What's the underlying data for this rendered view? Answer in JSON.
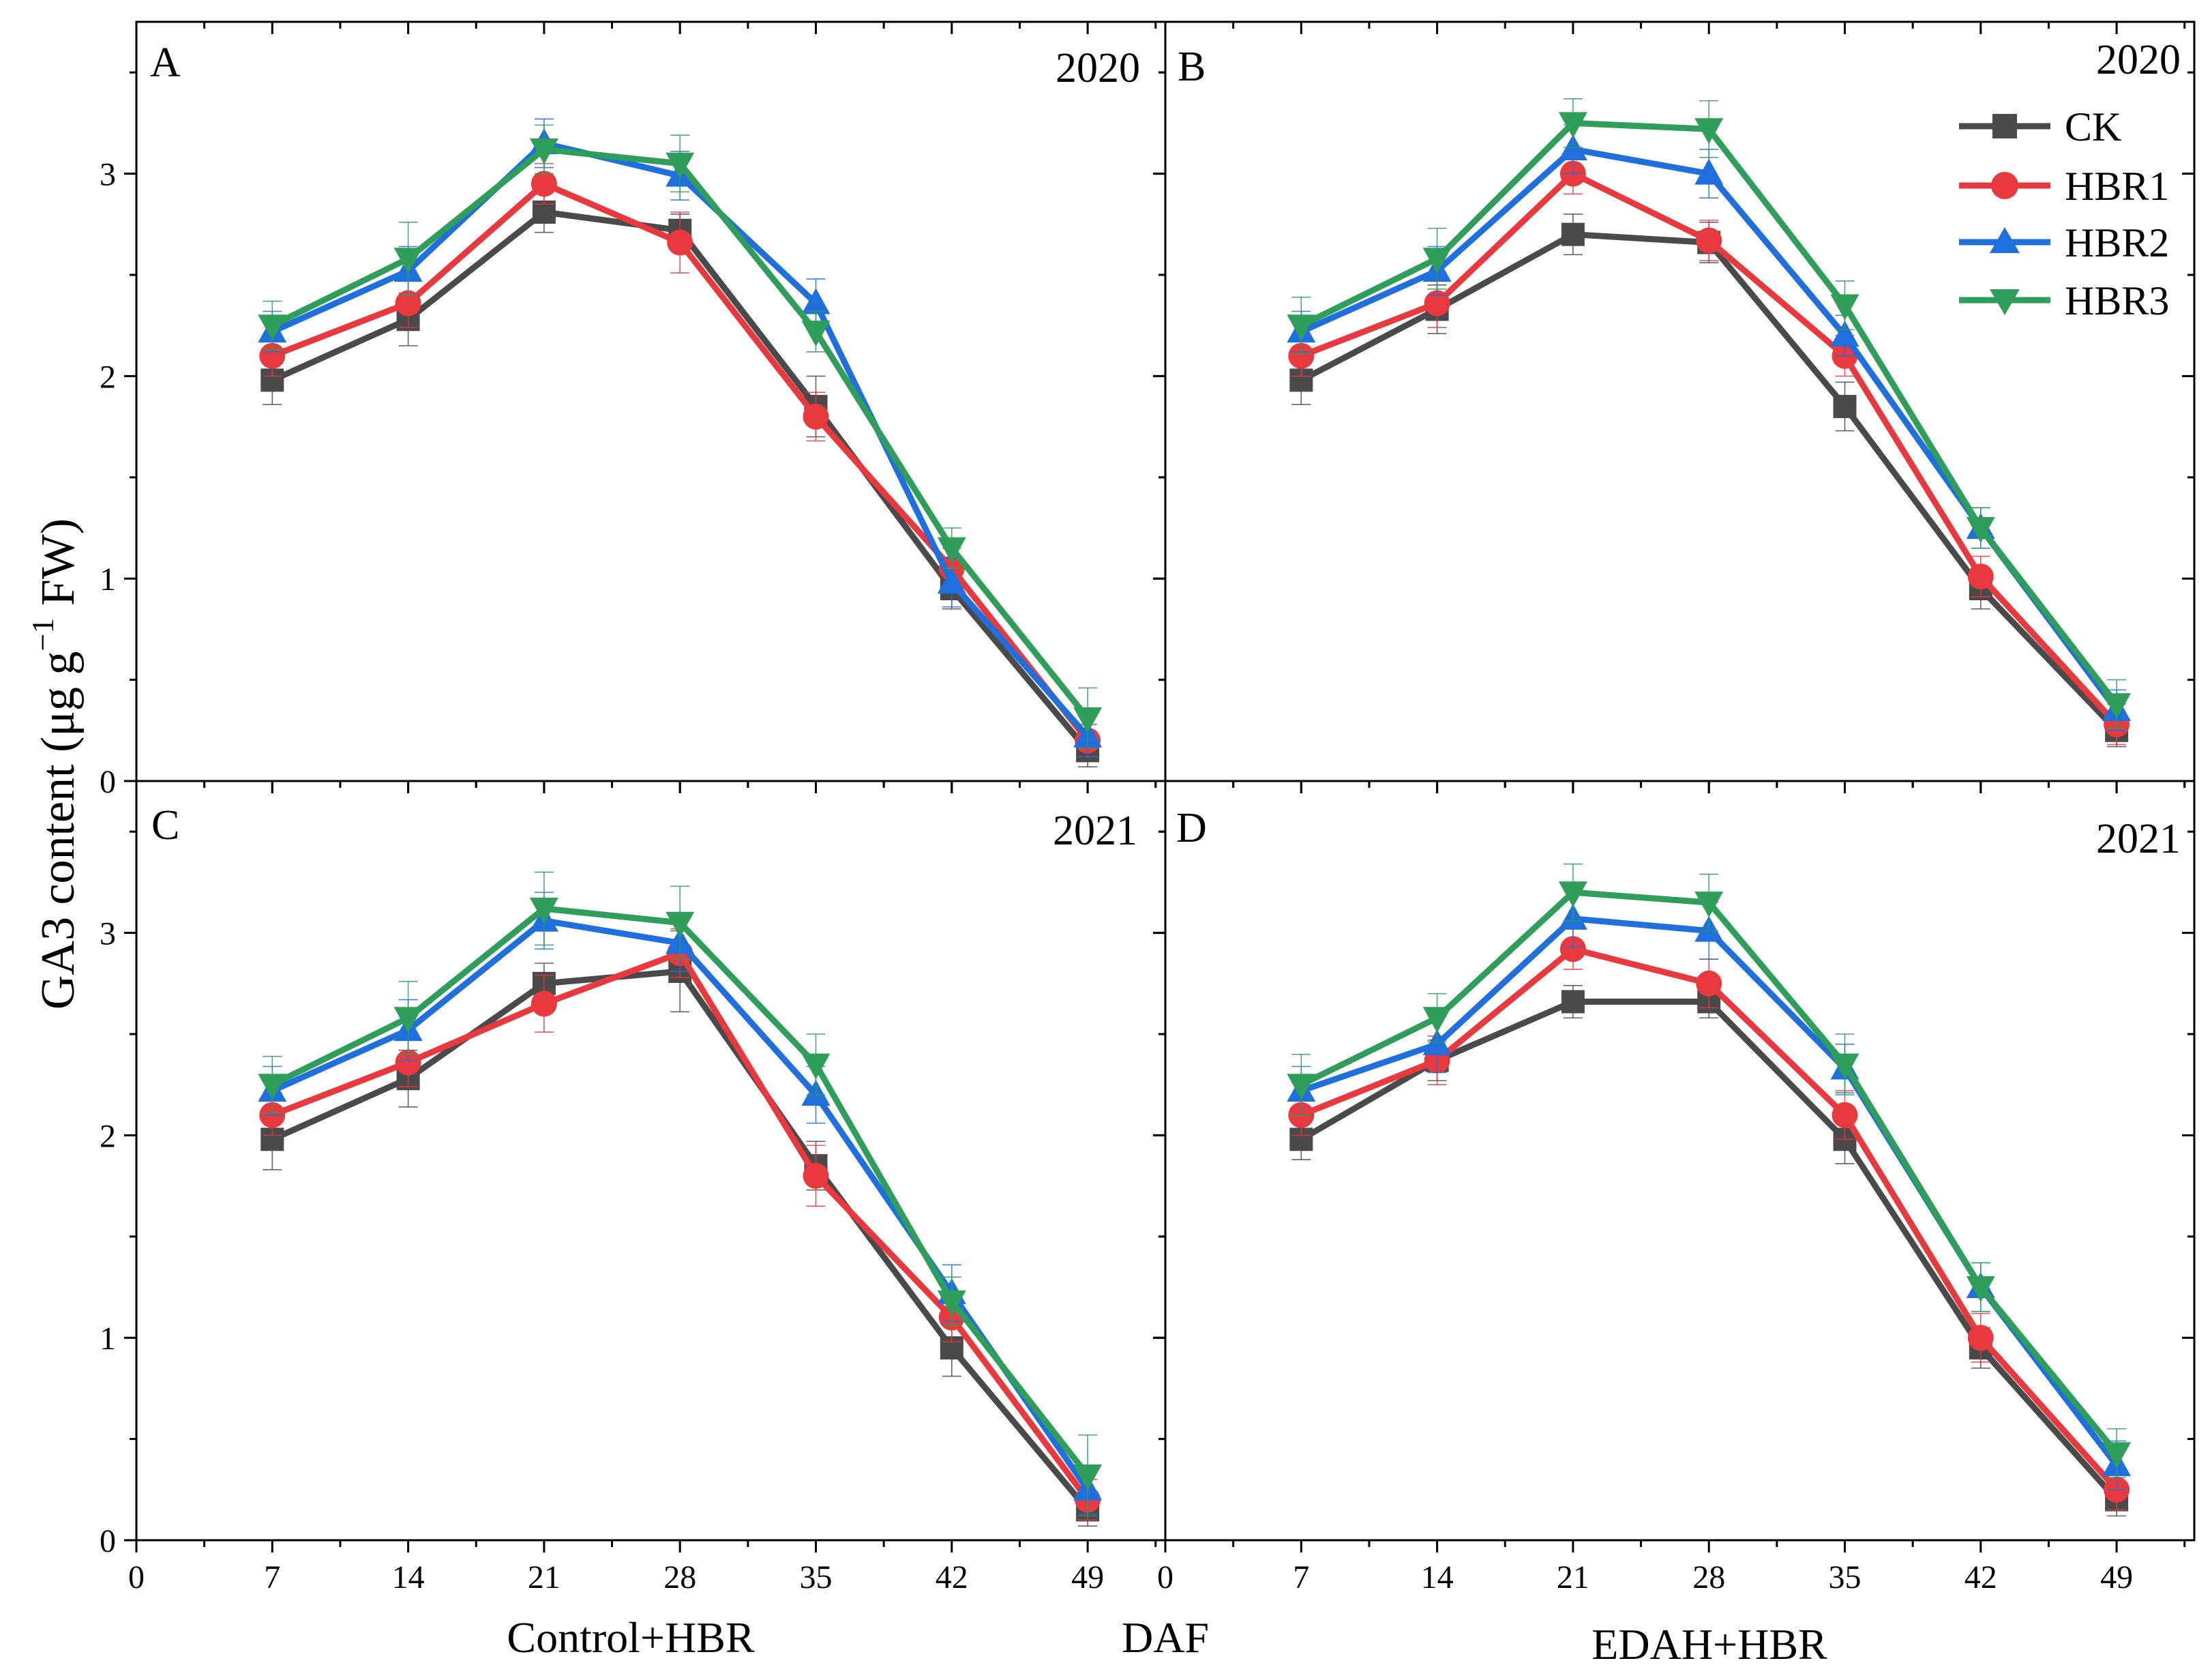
{
  "y_axis_label": "GA3 content (μg g",
  "y_axis_label_sup": "−1",
  "y_axis_label_tail": " FW)",
  "x_axis_labels": {
    "left": "Control+HBR",
    "middle": "DAF",
    "right": "EDAH+HBR"
  },
  "legend": [
    "CK",
    "HBR1",
    "HBR2",
    "HBR3"
  ],
  "series_styles": [
    {
      "name": "CK",
      "color": "#4a4a4a",
      "marker": "square"
    },
    {
      "name": "HBR1",
      "color": "#e8393f",
      "marker": "circle"
    },
    {
      "name": "HBR2",
      "color": "#1f6fdc",
      "marker": "triangle-up"
    },
    {
      "name": "HBR3",
      "color": "#2f9e5b",
      "marker": "triangle-down"
    }
  ],
  "chart_data": [
    {
      "panel": "A",
      "year": "2020",
      "type": "line",
      "x": [
        7,
        14,
        21,
        28,
        35,
        42,
        49
      ],
      "xlim": [
        0,
        53
      ],
      "ylim": [
        0,
        3.75
      ],
      "x_ticks": [
        0,
        7,
        14,
        21,
        28,
        35,
        42,
        49
      ],
      "y_ticks": [
        0,
        1,
        2,
        3
      ],
      "series": [
        {
          "name": "CK",
          "values": [
            1.98,
            2.28,
            2.81,
            2.72,
            1.85,
            0.95,
            0.15
          ],
          "errors": [
            0.12,
            0.13,
            0.1,
            0.08,
            0.15,
            0.1,
            0.08
          ]
        },
        {
          "name": "HBR1",
          "values": [
            2.1,
            2.36,
            2.95,
            2.66,
            1.8,
            1.05,
            0.2
          ],
          "errors": [
            0.1,
            0.12,
            0.1,
            0.15,
            0.12,
            0.1,
            0.08
          ]
        },
        {
          "name": "HBR2",
          "values": [
            2.22,
            2.52,
            3.15,
            2.99,
            2.36,
            0.98,
            0.22
          ],
          "errors": [
            0.1,
            0.12,
            0.12,
            0.12,
            0.12,
            0.12,
            0.1
          ]
        },
        {
          "name": "HBR3",
          "values": [
            2.25,
            2.58,
            3.12,
            3.05,
            2.22,
            1.15,
            0.31
          ],
          "errors": [
            0.12,
            0.18,
            0.12,
            0.14,
            0.1,
            0.1,
            0.15
          ]
        }
      ]
    },
    {
      "panel": "B",
      "year": "2020",
      "type": "line",
      "x": [
        7,
        14,
        21,
        28,
        35,
        42,
        49
      ],
      "xlim": [
        0,
        53
      ],
      "ylim": [
        0,
        3.75
      ],
      "x_ticks": [
        0,
        7,
        14,
        21,
        28,
        35,
        42,
        49
      ],
      "y_ticks": [
        0,
        1,
        2,
        3
      ],
      "series": [
        {
          "name": "CK",
          "values": [
            1.98,
            2.33,
            2.7,
            2.66,
            1.85,
            0.95,
            0.25
          ],
          "errors": [
            0.12,
            0.12,
            0.1,
            0.1,
            0.12,
            0.1,
            0.08
          ]
        },
        {
          "name": "HBR1",
          "values": [
            2.1,
            2.36,
            3.0,
            2.67,
            2.1,
            1.01,
            0.28
          ],
          "errors": [
            0.1,
            0.12,
            0.1,
            0.1,
            0.1,
            0.1,
            0.1
          ]
        },
        {
          "name": "HBR2",
          "values": [
            2.22,
            2.52,
            3.12,
            3.0,
            2.2,
            1.25,
            0.35
          ],
          "errors": [
            0.1,
            0.12,
            0.12,
            0.12,
            0.1,
            0.1,
            0.1
          ]
        },
        {
          "name": "HBR3",
          "values": [
            2.25,
            2.58,
            3.25,
            3.22,
            2.35,
            1.25,
            0.38
          ],
          "errors": [
            0.14,
            0.15,
            0.12,
            0.14,
            0.12,
            0.1,
            0.12
          ]
        }
      ]
    },
    {
      "panel": "C",
      "year": "2021",
      "type": "line",
      "x": [
        7,
        14,
        21,
        28,
        35,
        42,
        49
      ],
      "xlim": [
        0,
        53
      ],
      "ylim": [
        0,
        3.75
      ],
      "x_ticks": [
        0,
        7,
        14,
        21,
        28,
        35,
        42,
        49
      ],
      "y_ticks": [
        0,
        1,
        2,
        3
      ],
      "series": [
        {
          "name": "CK",
          "values": [
            1.98,
            2.28,
            2.75,
            2.81,
            1.85,
            0.95,
            0.15
          ],
          "errors": [
            0.15,
            0.14,
            0.1,
            0.2,
            0.12,
            0.14,
            0.08
          ]
        },
        {
          "name": "HBR1",
          "values": [
            2.1,
            2.36,
            2.65,
            2.9,
            1.8,
            1.1,
            0.2
          ],
          "errors": [
            0.1,
            0.12,
            0.14,
            0.12,
            0.15,
            0.12,
            0.1
          ]
        },
        {
          "name": "HBR2",
          "values": [
            2.22,
            2.52,
            3.06,
            2.95,
            2.2,
            1.22,
            0.25
          ],
          "errors": [
            0.12,
            0.15,
            0.14,
            0.14,
            0.14,
            0.14,
            0.12
          ]
        },
        {
          "name": "HBR3",
          "values": [
            2.25,
            2.58,
            3.12,
            3.05,
            2.35,
            1.18,
            0.32
          ],
          "errors": [
            0.14,
            0.18,
            0.18,
            0.18,
            0.15,
            0.12,
            0.2
          ]
        }
      ]
    },
    {
      "panel": "D",
      "year": "2021",
      "type": "line",
      "x": [
        7,
        14,
        21,
        28,
        35,
        42,
        49
      ],
      "xlim": [
        0,
        53
      ],
      "ylim": [
        0,
        3.75
      ],
      "x_ticks": [
        0,
        7,
        14,
        21,
        28,
        35,
        42,
        49
      ],
      "y_ticks": [
        0,
        1,
        2,
        3
      ],
      "series": [
        {
          "name": "CK",
          "values": [
            1.98,
            2.37,
            2.66,
            2.66,
            1.98,
            0.95,
            0.2
          ],
          "errors": [
            0.1,
            0.1,
            0.08,
            0.08,
            0.12,
            0.1,
            0.08
          ]
        },
        {
          "name": "HBR1",
          "values": [
            2.1,
            2.37,
            2.92,
            2.75,
            2.1,
            1.0,
            0.25
          ],
          "errors": [
            0.1,
            0.12,
            0.1,
            0.12,
            0.12,
            0.12,
            0.1
          ]
        },
        {
          "name": "HBR2",
          "values": [
            2.22,
            2.45,
            3.07,
            3.01,
            2.33,
            1.25,
            0.37
          ],
          "errors": [
            0.12,
            0.14,
            0.14,
            0.14,
            0.12,
            0.12,
            0.12
          ]
        },
        {
          "name": "HBR3",
          "values": [
            2.25,
            2.58,
            3.2,
            3.15,
            2.35,
            1.25,
            0.43
          ],
          "errors": [
            0.15,
            0.12,
            0.14,
            0.14,
            0.15,
            0.12,
            0.12
          ]
        }
      ]
    }
  ]
}
